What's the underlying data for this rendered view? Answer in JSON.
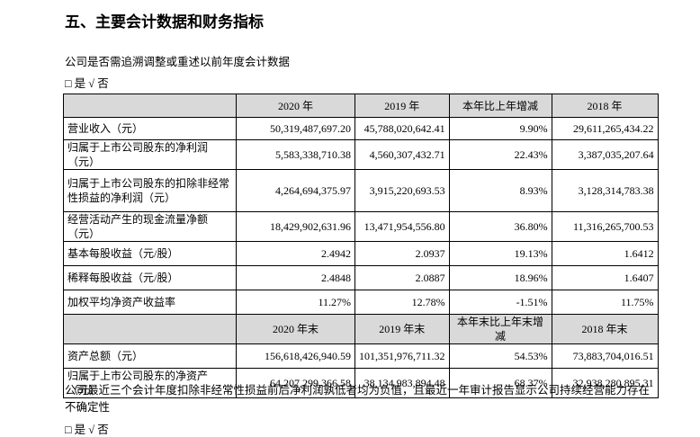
{
  "heading": "五、主要会计数据和财务指标",
  "question1": "公司是否需追溯调整或重述以前年度会计数据",
  "answer1": "□ 是 √ 否",
  "table": {
    "header": [
      "",
      "2020 年",
      "2019 年",
      "本年比上年增减",
      "2018 年"
    ],
    "rows": [
      [
        "营业收入（元）",
        "50,319,487,697.20",
        "45,788,020,642.41",
        "9.90%",
        "29,611,265,434.22"
      ],
      [
        "归属于上市公司股东的净利润（元）",
        "5,583,338,710.38",
        "4,560,307,432.71",
        "22.43%",
        "3,387,035,207.64"
      ],
      [
        "归属于上市公司股东的扣除非经常性损益的净利润（元）",
        "4,264,694,375.97",
        "3,915,220,693.53",
        "8.93%",
        "3,128,314,783.38"
      ],
      [
        "经营活动产生的现金流量净额（元）",
        "18,429,902,631.96",
        "13,471,954,556.80",
        "36.80%",
        "11,316,265,700.53"
      ],
      [
        "基本每股收益（元/股）",
        "2.4942",
        "2.0937",
        "19.13%",
        "1.6412"
      ],
      [
        "稀释每股收益（元/股）",
        "2.4848",
        "2.0887",
        "18.96%",
        "1.6407"
      ],
      [
        "加权平均净资产收益率",
        "11.27%",
        "12.78%",
        "-1.51%",
        "11.75%"
      ]
    ],
    "header2": [
      "",
      "2020 年末",
      "2019 年末",
      "本年末比上年末增减",
      "2018 年末"
    ],
    "rows2": [
      [
        "资产总额（元）",
        "156,618,426,940.59",
        "101,351,976,711.32",
        "54.53%",
        "73,883,704,016.51"
      ],
      [
        "归属于上市公司股东的净资产（元）",
        "64,207,299,366.58",
        "38,134,983,894.48",
        "68.37%",
        "32,938,280,895.31"
      ]
    ]
  },
  "note": "公司最近三个会计年度扣除非经常性损益前后净利润孰低者均为负值，且最近一年审计报告显示公司持续经营能力存在不确定性",
  "answer2": "□ 是 √ 否"
}
